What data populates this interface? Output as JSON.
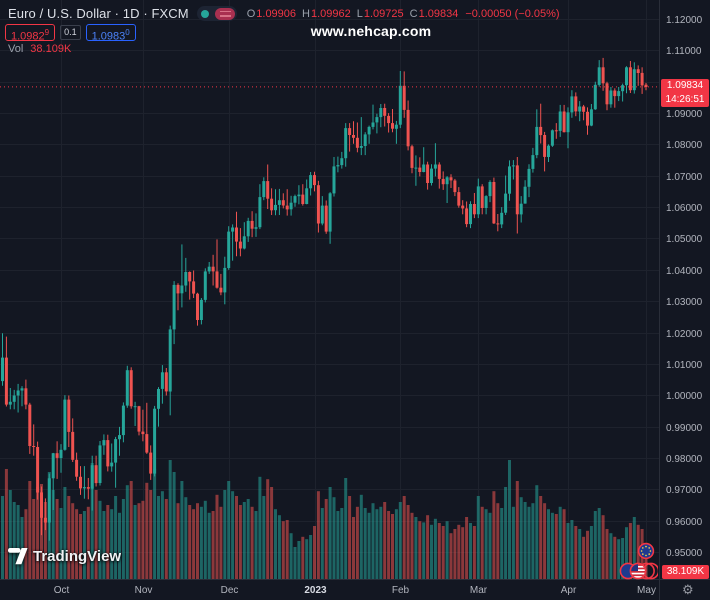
{
  "header": {
    "symbol_title": "Euro / U.S. Dollar · 1D · FXCM",
    "ohlc": {
      "o_label": "O",
      "o": "1.09906",
      "h_label": "H",
      "h": "1.09962",
      "l_label": "L",
      "l": "1.09725",
      "c_label": "C",
      "c": "1.09834",
      "change": "−0.00050 (−0.05%)"
    },
    "bid": {
      "main": "1.0982",
      "sup": "9"
    },
    "spread": "0.1",
    "ask": {
      "main": "1.0983",
      "sup": "0"
    },
    "volume_row": {
      "label": "Vol",
      "value": "38.109K"
    }
  },
  "watermark": "www.nehcap.com",
  "branding": {
    "logo_text": "TradingView"
  },
  "axis": {
    "price_label": {
      "price": "1.09834",
      "countdown": "14:26:51"
    },
    "volume_label": "38.109K"
  },
  "icons": {
    "gear": "⚙"
  },
  "colors": {
    "background": "#131722",
    "grid": "#1e222d",
    "separator": "#2a2e39",
    "up": "#26a69a",
    "down": "#ef5350",
    "accent": "#f23645",
    "ask_blue": "#2962ff",
    "axis_text": "#b2b5be"
  },
  "chart_data": {
    "type": "candlestick",
    "title": "Euro / U.S. Dollar, 1D, FXCM",
    "legend_position": "top-left",
    "grid": true,
    "y_axis_side": "right",
    "ylim": [
      0.9425,
      1.1265
    ],
    "y_ticks": [
      "1.12000",
      "1.11000",
      "1.10000",
      "1.09000",
      "1.08000",
      "1.07000",
      "1.06000",
      "1.05000",
      "1.04000",
      "1.03000",
      "1.02000",
      "1.01000",
      "1.00000",
      "0.99000",
      "0.98000",
      "0.97000",
      "0.96000",
      "0.95000"
    ],
    "x_ticks": [
      {
        "label": "Oct",
        "bar": 15
      },
      {
        "label": "Nov",
        "bar": 36
      },
      {
        "label": "Dec",
        "bar": 58
      },
      {
        "label": "2023",
        "bar": 80
      },
      {
        "label": "Feb",
        "bar": 102
      },
      {
        "label": "Mar",
        "bar": 122
      },
      {
        "label": "Apr",
        "bar": 145
      },
      {
        "label": "May",
        "bar": 165
      }
    ],
    "last_price": 1.09834,
    "fields": [
      "open",
      "high",
      "low",
      "close",
      "volume_k"
    ],
    "candles": [
      [
        1.0045,
        1.0198,
        1.003,
        1.012,
        140
      ],
      [
        1.012,
        1.0187,
        0.9964,
        0.997,
        185
      ],
      [
        0.997,
        1.0023,
        0.9955,
        0.9979,
        150
      ],
      [
        0.9979,
        1.0017,
        0.9955,
        0.9999,
        130
      ],
      [
        0.9999,
        1.0036,
        0.9945,
        1.0015,
        125
      ],
      [
        1.0015,
        1.0029,
        0.9965,
        1.0022,
        105
      ],
      [
        1.0022,
        1.005,
        0.9955,
        0.997,
        118
      ],
      [
        0.997,
        0.9976,
        0.9813,
        0.9838,
        165
      ],
      [
        0.9838,
        0.9907,
        0.9807,
        0.9835,
        135
      ],
      [
        0.9835,
        0.9852,
        0.9667,
        0.969,
        155
      ],
      [
        0.969,
        0.9709,
        0.9554,
        0.9609,
        160
      ],
      [
        0.9609,
        0.9671,
        0.957,
        0.9594,
        130
      ],
      [
        0.9594,
        0.975,
        0.9536,
        0.9735,
        180
      ],
      [
        0.9735,
        0.9816,
        0.9634,
        0.9815,
        150
      ],
      [
        0.9815,
        0.9853,
        0.9733,
        0.98,
        135
      ],
      [
        0.98,
        0.9844,
        0.9753,
        0.9826,
        120
      ],
      [
        0.9826,
        1.0,
        0.9823,
        0.9986,
        155
      ],
      [
        0.9986,
        0.9999,
        0.9835,
        0.9883,
        140
      ],
      [
        0.9883,
        0.9926,
        0.9787,
        0.9794,
        128
      ],
      [
        0.9794,
        0.9817,
        0.9727,
        0.974,
        118
      ],
      [
        0.974,
        0.9774,
        0.9682,
        0.9703,
        110
      ],
      [
        0.9703,
        0.9774,
        0.967,
        0.9707,
        115
      ],
      [
        0.9707,
        0.9736,
        0.9668,
        0.9702,
        122
      ],
      [
        0.9702,
        0.9807,
        0.9632,
        0.9777,
        195
      ],
      [
        0.9777,
        0.9807,
        0.9709,
        0.972,
        150
      ],
      [
        0.972,
        0.9854,
        0.9712,
        0.984,
        132
      ],
      [
        0.984,
        0.9875,
        0.981,
        0.9857,
        115
      ],
      [
        0.9857,
        0.9874,
        0.9757,
        0.9773,
        125
      ],
      [
        0.9773,
        0.9846,
        0.9756,
        0.9785,
        118
      ],
      [
        0.9785,
        0.9867,
        0.9705,
        0.986,
        140
      ],
      [
        0.986,
        0.9899,
        0.9807,
        0.9873,
        112
      ],
      [
        0.9873,
        0.9977,
        0.985,
        0.9967,
        135
      ],
      [
        0.9967,
        1.0094,
        0.996,
        1.008,
        158
      ],
      [
        1.008,
        1.0089,
        0.9957,
        0.9965,
        165
      ],
      [
        0.9965,
        0.9979,
        0.9902,
        0.9965,
        125
      ],
      [
        0.9965,
        0.9966,
        0.9872,
        0.9884,
        128
      ],
      [
        0.9884,
        0.9954,
        0.9853,
        0.9876,
        132
      ],
      [
        0.9876,
        0.9976,
        0.9813,
        0.9817,
        162
      ],
      [
        0.9817,
        0.984,
        0.973,
        0.975,
        150
      ],
      [
        0.975,
        0.9966,
        0.9741,
        0.9957,
        185
      ],
      [
        0.9957,
        1.0026,
        0.99,
        1.002,
        140
      ],
      [
        1.002,
        1.0096,
        0.9973,
        1.0073,
        148
      ],
      [
        1.0073,
        1.0087,
        0.9999,
        1.0012,
        135
      ],
      [
        1.0012,
        1.0222,
        0.9936,
        1.021,
        200
      ],
      [
        1.021,
        1.0364,
        1.0163,
        1.0352,
        180
      ],
      [
        1.0352,
        1.0357,
        1.0271,
        1.0325,
        128
      ],
      [
        1.0325,
        1.0481,
        1.028,
        1.035,
        165
      ],
      [
        1.035,
        1.0438,
        1.033,
        1.0393,
        138
      ],
      [
        1.0393,
        1.0395,
        1.0305,
        1.0363,
        125
      ],
      [
        1.0363,
        1.0398,
        1.031,
        1.0324,
        118
      ],
      [
        1.0324,
        1.0327,
        1.0222,
        1.024,
        128
      ],
      [
        1.024,
        1.031,
        1.0226,
        1.0304,
        122
      ],
      [
        1.0304,
        1.0405,
        1.0296,
        1.0395,
        132
      ],
      [
        1.0395,
        1.0425,
        1.0387,
        1.041,
        112
      ],
      [
        1.041,
        1.0448,
        1.035,
        1.0395,
        115
      ],
      [
        1.0395,
        1.0497,
        1.034,
        1.0343,
        142
      ],
      [
        1.0343,
        1.0387,
        1.0319,
        1.0328,
        122
      ],
      [
        1.0328,
        1.0442,
        1.029,
        1.0406,
        150
      ],
      [
        1.0406,
        1.0539,
        1.04,
        1.0522,
        165
      ],
      [
        1.0522,
        1.0545,
        1.0429,
        1.0535,
        148
      ],
      [
        1.0535,
        1.0585,
        1.0443,
        1.049,
        140
      ],
      [
        1.049,
        1.0533,
        1.0443,
        1.0468,
        125
      ],
      [
        1.0468,
        1.0552,
        1.0465,
        1.0507,
        130
      ],
      [
        1.0507,
        1.0566,
        1.0489,
        1.0556,
        135
      ],
      [
        1.0556,
        1.0587,
        1.0504,
        1.0531,
        122
      ],
      [
        1.0531,
        1.058,
        1.0505,
        1.0536,
        115
      ],
      [
        1.0536,
        1.0673,
        1.053,
        1.0632,
        172
      ],
      [
        1.0632,
        1.0695,
        1.0622,
        1.0683,
        140
      ],
      [
        1.0683,
        1.0736,
        1.0594,
        1.0627,
        168
      ],
      [
        1.0627,
        1.066,
        1.0575,
        1.059,
        155
      ],
      [
        1.059,
        1.0657,
        1.0574,
        1.0607,
        118
      ],
      [
        1.0607,
        1.0658,
        1.0575,
        1.0622,
        108
      ],
      [
        1.0622,
        1.0644,
        1.0596,
        1.0605,
        98
      ],
      [
        1.0605,
        1.0657,
        1.0573,
        1.0593,
        100
      ],
      [
        1.0593,
        1.0636,
        1.0573,
        1.0614,
        78
      ],
      [
        1.0614,
        1.064,
        1.0601,
        1.0635,
        55
      ],
      [
        1.0635,
        1.067,
        1.0609,
        1.064,
        65
      ],
      [
        1.064,
        1.0673,
        1.0605,
        1.061,
        72
      ],
      [
        1.061,
        1.0688,
        1.0609,
        1.066,
        68
      ],
      [
        1.066,
        1.0712,
        1.0637,
        1.0702,
        75
      ],
      [
        1.0702,
        1.0713,
        1.065,
        1.067,
        90
      ],
      [
        1.067,
        1.0684,
        1.0519,
        1.0548,
        148
      ],
      [
        1.0548,
        1.0635,
        1.0542,
        1.0605,
        120
      ],
      [
        1.0605,
        1.0621,
        1.0515,
        1.0522,
        135
      ],
      [
        1.0522,
        1.0648,
        1.0483,
        1.0644,
        155
      ],
      [
        1.0644,
        1.076,
        1.0634,
        1.073,
        138
      ],
      [
        1.073,
        1.0761,
        1.0711,
        1.0734,
        115
      ],
      [
        1.0734,
        1.0776,
        1.0723,
        1.0756,
        120
      ],
      [
        1.0756,
        1.0868,
        1.0729,
        1.0852,
        170
      ],
      [
        1.0852,
        1.0868,
        1.0777,
        1.083,
        140
      ],
      [
        1.083,
        1.0874,
        1.0802,
        1.0821,
        105
      ],
      [
        1.0821,
        1.087,
        1.0775,
        1.0789,
        122
      ],
      [
        1.0789,
        1.0887,
        1.0766,
        1.0795,
        142
      ],
      [
        1.0795,
        1.0839,
        1.0766,
        1.0832,
        120
      ],
      [
        1.0832,
        1.086,
        1.0802,
        1.0856,
        112
      ],
      [
        1.0856,
        1.0927,
        1.0848,
        1.087,
        128
      ],
      [
        1.087,
        1.0898,
        1.0835,
        1.0887,
        118
      ],
      [
        1.0887,
        1.0929,
        1.0855,
        1.0916,
        122
      ],
      [
        1.0916,
        1.093,
        1.0857,
        1.0891,
        130
      ],
      [
        1.0891,
        1.09,
        1.0838,
        1.0868,
        115
      ],
      [
        1.0868,
        1.0913,
        1.0839,
        1.085,
        110
      ],
      [
        1.085,
        1.0875,
        1.0802,
        1.0863,
        118
      ],
      [
        1.0863,
        1.1034,
        1.0852,
        1.0987,
        130
      ],
      [
        1.0987,
        1.1033,
        1.0885,
        1.091,
        140
      ],
      [
        1.091,
        1.094,
        1.0781,
        1.0794,
        125
      ],
      [
        1.0794,
        1.0799,
        1.0708,
        1.0725,
        112
      ],
      [
        1.0725,
        1.0765,
        1.0668,
        1.0726,
        105
      ],
      [
        1.0726,
        1.0759,
        1.0698,
        1.0712,
        98
      ],
      [
        1.0712,
        1.0791,
        1.0711,
        1.0736,
        96
      ],
      [
        1.0736,
        1.0745,
        1.0656,
        1.0677,
        108
      ],
      [
        1.0677,
        1.0737,
        1.0669,
        1.0723,
        92
      ],
      [
        1.0723,
        1.0804,
        1.0698,
        1.0736,
        102
      ],
      [
        1.0736,
        1.0743,
        1.0659,
        1.069,
        95
      ],
      [
        1.069,
        1.0714,
        1.0655,
        1.0673,
        90
      ],
      [
        1.0673,
        1.0699,
        1.0613,
        1.0695,
        98
      ],
      [
        1.0695,
        1.0705,
        1.0661,
        1.0685,
        78
      ],
      [
        1.0685,
        1.069,
        1.0635,
        1.0648,
        85
      ],
      [
        1.0648,
        1.0664,
        1.0598,
        1.0605,
        92
      ],
      [
        1.0605,
        1.0622,
        1.0577,
        1.0596,
        88
      ],
      [
        1.0596,
        1.0618,
        1.0536,
        1.0546,
        105
      ],
      [
        1.0546,
        1.0619,
        1.0533,
        1.061,
        95
      ],
      [
        1.061,
        1.0645,
        1.0565,
        1.0577,
        90
      ],
      [
        1.0577,
        1.0691,
        1.0565,
        1.0666,
        140
      ],
      [
        1.0666,
        1.0673,
        1.0577,
        1.0597,
        122
      ],
      [
        1.0597,
        1.0638,
        1.0577,
        1.0635,
        118
      ],
      [
        1.0635,
        1.0686,
        1.0616,
        1.068,
        112
      ],
      [
        1.068,
        1.0694,
        1.0546,
        1.0548,
        148
      ],
      [
        1.0548,
        1.0578,
        1.0523,
        1.0545,
        128
      ],
      [
        1.0545,
        1.06,
        1.0533,
        1.0582,
        120
      ],
      [
        1.0582,
        1.0701,
        1.0575,
        1.0643,
        155
      ],
      [
        1.0643,
        1.0749,
        1.062,
        1.073,
        200
      ],
      [
        1.073,
        1.075,
        1.0688,
        1.0733,
        122
      ],
      [
        1.0733,
        1.076,
        1.0516,
        1.0577,
        165
      ],
      [
        1.0577,
        1.0635,
        1.0551,
        1.0611,
        138
      ],
      [
        1.0611,
        1.0686,
        1.0611,
        1.0665,
        130
      ],
      [
        1.0665,
        1.0737,
        1.0632,
        1.0722,
        122
      ],
      [
        1.0722,
        1.0789,
        1.071,
        1.0766,
        128
      ],
      [
        1.0766,
        1.0912,
        1.0756,
        1.0856,
        158
      ],
      [
        1.0856,
        1.093,
        1.0803,
        1.083,
        140
      ],
      [
        1.083,
        1.084,
        1.0714,
        1.076,
        128
      ],
      [
        1.076,
        1.08,
        1.0744,
        1.0796,
        118
      ],
      [
        1.0796,
        1.0848,
        1.0792,
        1.0845,
        112
      ],
      [
        1.0845,
        1.0868,
        1.0818,
        1.0843,
        110
      ],
      [
        1.0843,
        1.0926,
        1.0824,
        1.0905,
        122
      ],
      [
        1.0905,
        1.0926,
        1.0838,
        1.0839,
        118
      ],
      [
        1.0839,
        1.0918,
        1.0788,
        1.0902,
        95
      ],
      [
        1.0902,
        1.0973,
        1.0885,
        1.0953,
        100
      ],
      [
        1.0953,
        1.0966,
        1.089,
        1.0905,
        90
      ],
      [
        1.0905,
        1.0938,
        1.0874,
        1.0921,
        85
      ],
      [
        1.0921,
        1.0926,
        1.0877,
        1.0904,
        72
      ],
      [
        1.0904,
        1.0918,
        1.0831,
        1.086,
        82
      ],
      [
        1.086,
        1.0929,
        1.0858,
        1.0912,
        90
      ],
      [
        1.0912,
        1.1,
        1.091,
        1.099,
        115
      ],
      [
        1.099,
        1.1069,
        1.0984,
        1.1046,
        120
      ],
      [
        1.1046,
        1.1076,
        1.0971,
        1.0995,
        108
      ],
      [
        1.0995,
        1.1,
        1.0909,
        1.0928,
        85
      ],
      [
        1.0928,
        1.0983,
        1.0917,
        1.0972,
        78
      ],
      [
        1.0972,
        1.0979,
        1.0917,
        1.0954,
        72
      ],
      [
        1.0954,
        1.0983,
        1.0938,
        1.097,
        68
      ],
      [
        1.097,
        1.0994,
        1.0937,
        1.0989,
        70
      ],
      [
        1.0989,
        1.1049,
        1.0963,
        1.1046,
        88
      ],
      [
        1.1046,
        1.1066,
        1.0964,
        1.0973,
        95
      ],
      [
        1.0973,
        1.1062,
        1.0962,
        1.104,
        105
      ],
      [
        1.104,
        1.1052,
        1.0987,
        1.1028,
        92
      ],
      [
        1.1028,
        1.1046,
        1.0961,
        1.0988,
        85
      ],
      [
        1.09906,
        1.09962,
        1.09725,
        1.09834,
        38.109
      ]
    ]
  }
}
